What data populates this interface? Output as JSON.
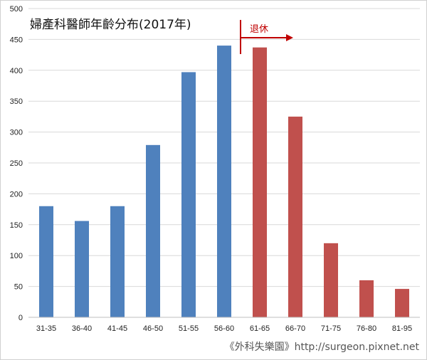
{
  "chart_data": {
    "type": "bar",
    "title": "婦產科醫師年齡分布(2017年)",
    "categories": [
      "31-35",
      "36-40",
      "41-45",
      "46-50",
      "51-55",
      "56-60",
      "61-65",
      "66-70",
      "71-75",
      "76-80",
      "81-95"
    ],
    "values": [
      180,
      156,
      180,
      279,
      397,
      440,
      437,
      325,
      120,
      60,
      46
    ],
    "ylim": [
      0,
      500
    ],
    "yticks": [
      0,
      50,
      100,
      150,
      200,
      250,
      300,
      350,
      400,
      450,
      500
    ],
    "grid": true,
    "xlabel": "",
    "ylabel": "",
    "colors": {
      "working": "#4f81bd",
      "retired": "#c0504d",
      "grid": "#d9d9d9"
    },
    "retired_from_index": 6,
    "annotation": {
      "text": "退休",
      "color": "#c00000"
    }
  },
  "credit": "《外科失樂園》http://surgeon.pixnet.net"
}
